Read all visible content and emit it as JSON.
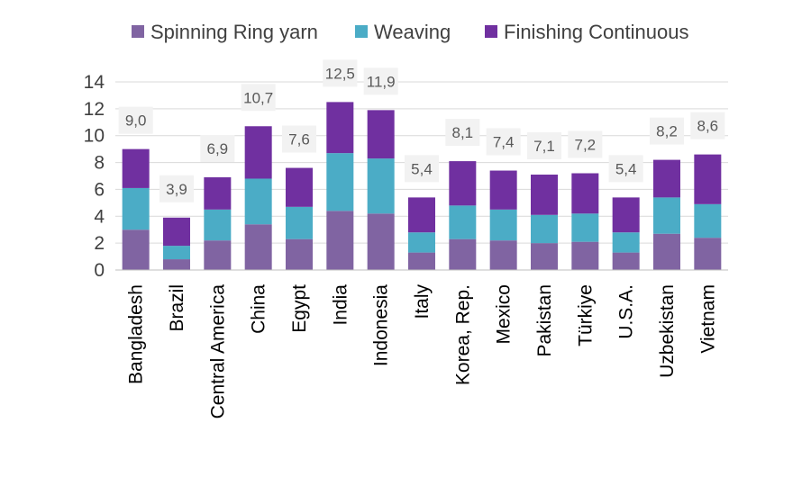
{
  "chart_data": {
    "type": "bar",
    "stacked": true,
    "title": "",
    "xlabel": "",
    "ylabel": "",
    "ylim": [
      0,
      14
    ],
    "yticks": [
      0,
      2,
      4,
      6,
      8,
      10,
      12,
      14
    ],
    "grid": true,
    "legend_position": "top",
    "categories": [
      "Bangladesh",
      "Brazil",
      "Central America",
      "China",
      "Egypt",
      "India",
      "Indonesia",
      "Italy",
      "Korea, Rep.",
      "Mexico",
      "Pakistan",
      "Türkiye",
      "U.S.A.",
      "Uzbekistan",
      "Vietnam"
    ],
    "series": [
      {
        "name": "Spinning Ring yarn",
        "color": "#8064a2",
        "values": [
          3.0,
          0.8,
          2.2,
          3.4,
          2.3,
          4.4,
          4.2,
          1.3,
          2.3,
          2.2,
          2.0,
          2.1,
          1.3,
          2.7,
          2.4
        ]
      },
      {
        "name": "Weaving",
        "color": "#4bacc6",
        "values": [
          3.1,
          1.0,
          2.3,
          3.4,
          2.4,
          4.3,
          4.1,
          1.5,
          2.5,
          2.3,
          2.1,
          2.1,
          1.5,
          2.7,
          2.5
        ]
      },
      {
        "name": "Finishing Continuous",
        "color": "#7030a0",
        "values": [
          2.9,
          2.1,
          2.4,
          3.9,
          2.9,
          3.8,
          3.6,
          2.6,
          3.3,
          2.9,
          3.0,
          3.0,
          2.6,
          2.8,
          3.7
        ]
      }
    ],
    "totals": [
      "9,0",
      "3,9",
      "6,9",
      "10,7",
      "7,6",
      "12,5",
      "11,9",
      "5,4",
      "8,1",
      "7,4",
      "7,1",
      "7,2",
      "5,4",
      "8,2",
      "8,6"
    ]
  },
  "colors": {
    "grid": "#d9d9d9",
    "axis": "#bfbfbf",
    "label_box": "#f2f2f2"
  }
}
